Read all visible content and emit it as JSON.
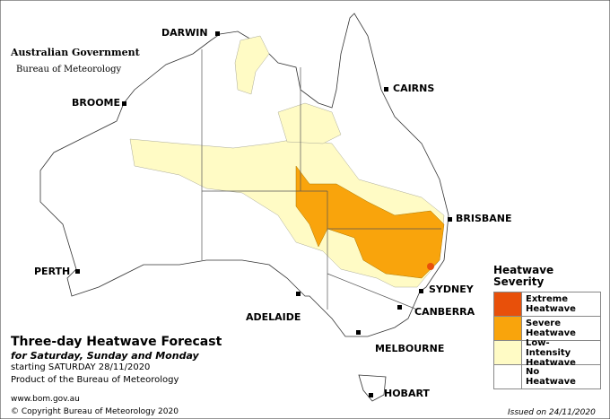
{
  "logo": {
    "government": "Australian Government",
    "agency": "Bureau of Meteorology"
  },
  "cities": [
    "DARWIN",
    "CAIRNS",
    "BROOME",
    "BRISBANE",
    "PERTH",
    "SYDNEY",
    "ADELAIDE",
    "CANBERRA",
    "MELBOURNE",
    "HOBART"
  ],
  "title": "Three-day Heatwave Forecast",
  "subtitle": "for Saturday, Sunday and Monday",
  "start": "starting SATURDAY 28/11/2020",
  "product": "Product of the Bureau of Meteorology",
  "website": "www.bom.gov.au",
  "copyright": "© Copyright Bureau of Meteorology 2020",
  "issued": "Issued on 24/11/2020",
  "legend": {
    "title": "Heatwave Severity",
    "items": [
      {
        "label": "Extreme Heatwave",
        "color": "#e8500a"
      },
      {
        "label": "Severe Heatwave",
        "color": "#f9a40c"
      },
      {
        "label": "Low-Intensity Heatwave",
        "color": "#fffbc5"
      },
      {
        "label": "No Heatwave",
        "color": "#ffffff"
      }
    ]
  }
}
